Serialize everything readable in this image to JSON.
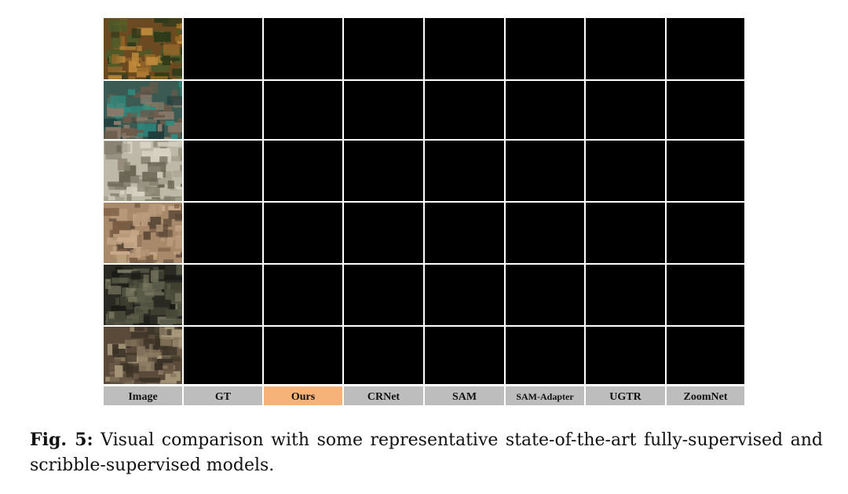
{
  "figure": {
    "columns": [
      {
        "label": "Image",
        "highlight": false
      },
      {
        "label": "GT",
        "highlight": false
      },
      {
        "label": "Ours",
        "highlight": true
      },
      {
        "label": "CRNet",
        "highlight": false
      },
      {
        "label": "SAM",
        "highlight": false
      },
      {
        "label": "SAM-Adapter",
        "highlight": false
      },
      {
        "label": "UGTR",
        "highlight": false
      },
      {
        "label": "ZoomNet",
        "highlight": false
      }
    ],
    "rows": 6,
    "colors": {
      "label_bg": "#bdbdbd",
      "highlight_bg": "#f5b37a",
      "mask_fg": "#ffffff",
      "mask_bg": "#000000"
    }
  },
  "caption": {
    "label": "Fig. 5:",
    "text": "Visual comparison with some representative state-of-the-art fully-supervised and scribble-supervised models."
  }
}
